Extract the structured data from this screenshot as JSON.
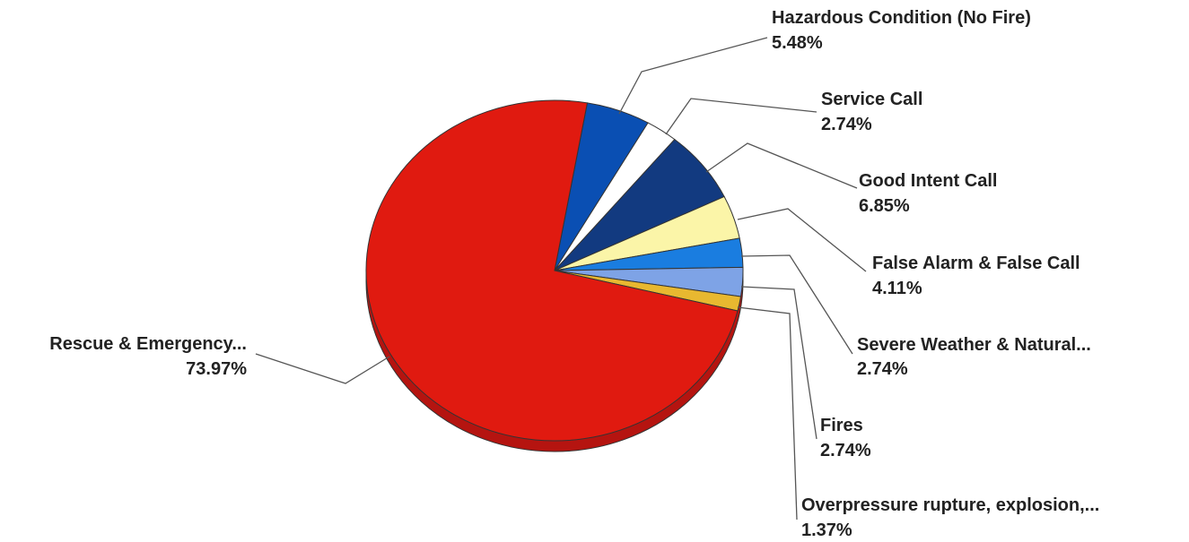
{
  "chart_data": {
    "type": "pie",
    "title": "",
    "slices": [
      {
        "label": "Hazardous Condition (No Fire)",
        "value_label": "5.48%",
        "value": 5.48,
        "color": "#0a4fb3"
      },
      {
        "label": "Service Call",
        "value_label": "2.74%",
        "value": 2.74,
        "color": "#ffffff"
      },
      {
        "label": "Good Intent Call",
        "value_label": "6.85%",
        "value": 6.85,
        "color": "#123a80"
      },
      {
        "label": "False Alarm & False Call",
        "value_label": "4.11%",
        "value": 4.11,
        "color": "#fbf5a8"
      },
      {
        "label": "Severe Weather & Natural...",
        "value_label": "2.74%",
        "value": 2.74,
        "color": "#1a7de0"
      },
      {
        "label": "Fires",
        "value_label": "2.74%",
        "value": 2.74,
        "color": "#7ea3e6"
      },
      {
        "label": "Overpressure rupture, explosion,...",
        "value_label": "1.37%",
        "value": 1.37,
        "color": "#e8b830"
      },
      {
        "label": "Rescue & Emergency...",
        "value_label": "73.97%",
        "value": 73.97,
        "color": "#e01a10"
      }
    ],
    "start_angle_deg": 80,
    "direction": "clockwise",
    "legend": "none"
  }
}
